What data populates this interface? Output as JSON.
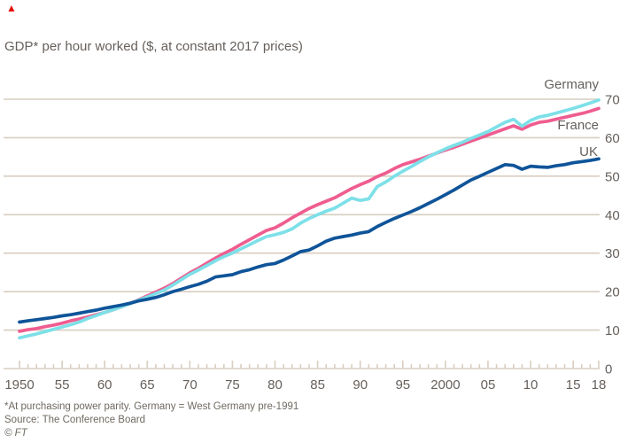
{
  "page": {
    "red_marker_icon": "▲"
  },
  "header": {
    "title": "GDP* per hour worked ($, at constant 2017 prices)"
  },
  "footer": {
    "footnote": "*At purchasing power parity. Germany = West Germany pre-1991",
    "source": "Source: The Conference Board",
    "copyright": "© FT"
  },
  "colors": {
    "germany": "#7de0e8",
    "france": "#ef5d90",
    "uk": "#0f5499",
    "grid": "#d8cec1",
    "text": "#66605c",
    "red_marker": "#e3120b"
  },
  "chart_data": {
    "type": "line",
    "title": "GDP* per hour worked ($, at constant 2017 prices)",
    "xlabel": "",
    "ylabel": "GDP per hour worked ($, constant 2017 prices)",
    "xlim": [
      1950,
      2018
    ],
    "ylim": [
      0,
      70
    ],
    "grid": "horizontal",
    "legend_position": "direct labels at line ends (right)",
    "yticks": [
      0,
      10,
      20,
      30,
      40,
      50,
      60,
      70
    ],
    "xtick_years": [
      1950,
      1955,
      1960,
      1965,
      1970,
      1975,
      1980,
      1985,
      1990,
      1995,
      2000,
      2005,
      2010,
      2015,
      2018
    ],
    "xtick_labels": [
      "1950",
      "55",
      "60",
      "65",
      "70",
      "75",
      "80",
      "85",
      "90",
      "95",
      "2000",
      "05",
      "10",
      "15",
      "18"
    ],
    "x_years": [
      1950,
      1951,
      1952,
      1953,
      1954,
      1955,
      1956,
      1957,
      1958,
      1959,
      1960,
      1961,
      1962,
      1963,
      1964,
      1965,
      1966,
      1967,
      1968,
      1969,
      1970,
      1971,
      1972,
      1973,
      1974,
      1975,
      1976,
      1977,
      1978,
      1979,
      1980,
      1981,
      1982,
      1983,
      1984,
      1985,
      1986,
      1987,
      1988,
      1989,
      1990,
      1991,
      1992,
      1993,
      1994,
      1995,
      1996,
      1997,
      1998,
      1999,
      2000,
      2001,
      2002,
      2003,
      2004,
      2005,
      2006,
      2007,
      2008,
      2009,
      2010,
      2011,
      2012,
      2013,
      2014,
      2015,
      2016,
      2017,
      2018
    ],
    "series": [
      {
        "name": "Germany",
        "color": "#7de0e8",
        "values": [
          8.0,
          8.5,
          9.0,
          9.6,
          10.2,
          10.8,
          11.4,
          12.1,
          13.0,
          13.8,
          14.6,
          15.3,
          16.1,
          16.9,
          17.8,
          18.6,
          19.5,
          20.4,
          21.7,
          23.1,
          24.5,
          25.6,
          26.8,
          28.0,
          29.1,
          30.0,
          31.1,
          32.2,
          33.3,
          34.3,
          34.8,
          35.4,
          36.3,
          37.8,
          39.0,
          40.0,
          40.9,
          41.7,
          43.0,
          44.3,
          43.7,
          44.1,
          47.3,
          48.5,
          50.0,
          51.3,
          52.5,
          53.8,
          55.0,
          56.1,
          57.1,
          58.0,
          58.8,
          59.8,
          60.7,
          61.6,
          62.8,
          64.0,
          64.8,
          63.0,
          64.5,
          65.4,
          65.8,
          66.4,
          67.0,
          67.6,
          68.3,
          69.0,
          69.8
        ]
      },
      {
        "name": "France",
        "color": "#ef5d90",
        "values": [
          9.7,
          10.1,
          10.4,
          10.9,
          11.3,
          11.8,
          12.4,
          12.9,
          13.4,
          14.0,
          14.6,
          15.3,
          16.1,
          16.9,
          17.9,
          18.9,
          19.9,
          20.9,
          22.1,
          23.5,
          24.9,
          26.1,
          27.4,
          28.7,
          29.9,
          31.0,
          32.3,
          33.5,
          34.7,
          35.9,
          36.6,
          37.8,
          39.2,
          40.4,
          41.6,
          42.6,
          43.5,
          44.4,
          45.6,
          46.8,
          47.8,
          48.7,
          49.9,
          50.8,
          52.0,
          53.0,
          53.7,
          54.4,
          55.2,
          56.0,
          56.8,
          57.5,
          58.3,
          59.1,
          59.9,
          60.7,
          61.5,
          62.3,
          63.1,
          62.2,
          63.3,
          64.0,
          64.3,
          64.8,
          65.3,
          65.8,
          66.3,
          66.9,
          67.6
        ]
      },
      {
        "name": "UK",
        "color": "#0f5499",
        "values": [
          12.1,
          12.4,
          12.7,
          13.0,
          13.3,
          13.7,
          14.0,
          14.4,
          14.8,
          15.2,
          15.7,
          16.1,
          16.5,
          17.0,
          17.6,
          18.0,
          18.5,
          19.2,
          20.0,
          20.6,
          21.3,
          21.9,
          22.7,
          23.8,
          24.1,
          24.4,
          25.2,
          25.7,
          26.4,
          27.0,
          27.3,
          28.2,
          29.3,
          30.4,
          30.8,
          31.9,
          33.1,
          33.9,
          34.3,
          34.7,
          35.2,
          35.6,
          36.9,
          38.0,
          39.0,
          39.9,
          40.8,
          41.8,
          42.9,
          44.0,
          45.2,
          46.4,
          47.7,
          49.0,
          50.0,
          51.0,
          52.0,
          53.0,
          52.8,
          51.8,
          52.6,
          52.4,
          52.3,
          52.7,
          53.0,
          53.5,
          53.8,
          54.1,
          54.5
        ]
      }
    ]
  }
}
